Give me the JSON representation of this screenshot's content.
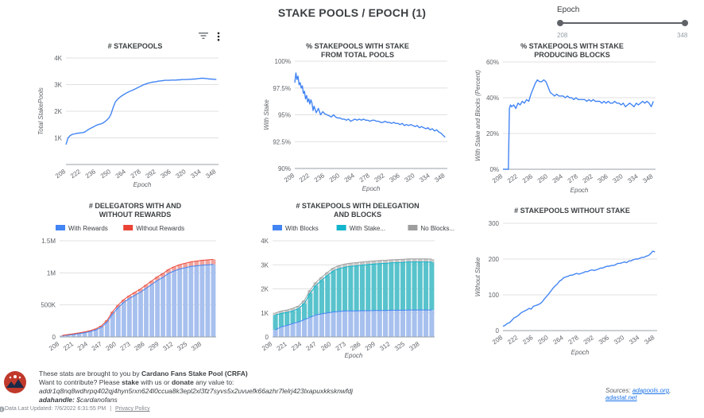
{
  "page": {
    "title": "STAKE POOLS / EPOCH (1)",
    "slider": {
      "label": "Epoch",
      "min": "208",
      "max": "348"
    }
  },
  "colors": {
    "blue": "#4285f4",
    "red": "#ea4335",
    "teal": "#58c3cc",
    "gray": "#c7c7c7",
    "bar_blue": "#a7c0ee",
    "bar_red": "#f1a39c"
  },
  "icons": {
    "filter": "filter-icon",
    "more": "more-vert-icon",
    "info": "info-icon",
    "logo": "cardano-logo"
  },
  "chart_data": [
    {
      "id": "stakepools",
      "type": "line",
      "title": "# STAKEPOOLS",
      "xlabel": "Epoch",
      "ylabel": "Total StakePools",
      "x_ticks": [
        "208",
        "222",
        "236",
        "250",
        "264",
        "278",
        "292",
        "306",
        "320",
        "334",
        "348"
      ],
      "y_ticks": [
        "1K",
        "2K",
        "3K",
        "4K"
      ],
      "xlim": [
        208,
        350
      ],
      "ylim": [
        0,
        4000
      ],
      "series": [
        {
          "x": [
            208,
            210,
            212,
            214,
            216,
            218,
            220,
            222,
            224,
            226,
            228,
            230,
            232,
            234,
            236,
            238,
            240,
            242,
            244,
            246,
            248,
            250,
            252,
            254,
            256,
            258,
            260,
            262,
            264,
            266,
            268,
            270,
            272,
            274,
            276,
            278,
            280,
            282,
            284,
            286,
            288,
            290,
            292,
            294,
            296,
            298,
            300,
            302,
            304,
            306,
            308,
            310,
            312,
            314,
            316,
            318,
            320,
            322,
            324,
            326,
            328,
            330,
            332,
            334,
            336,
            338,
            340,
            342,
            344,
            346,
            348
          ],
          "y": [
            750,
            1000,
            1090,
            1130,
            1150,
            1170,
            1180,
            1190,
            1200,
            1230,
            1290,
            1340,
            1380,
            1420,
            1470,
            1500,
            1520,
            1550,
            1600,
            1670,
            1750,
            1900,
            2150,
            2350,
            2450,
            2520,
            2580,
            2630,
            2680,
            2720,
            2760,
            2790,
            2830,
            2870,
            2910,
            2950,
            2990,
            3020,
            3050,
            3070,
            3090,
            3100,
            3110,
            3130,
            3140,
            3150,
            3160,
            3160,
            3160,
            3170,
            3170,
            3170,
            3180,
            3180,
            3190,
            3190,
            3190,
            3200,
            3200,
            3210,
            3210,
            3220,
            3230,
            3240,
            3240,
            3230,
            3220,
            3210,
            3210,
            3200,
            3200
          ]
        }
      ]
    },
    {
      "id": "pct_stake",
      "type": "line",
      "title": "% STAKEPOOLS WITH STAKE FROM TOTAL POOLS",
      "title_lines": [
        "% STAKEPOOLS WITH STAKE",
        "FROM TOTAL POOLS"
      ],
      "xlabel": "Epoch",
      "ylabel": "With Stake",
      "x_ticks": [
        "208",
        "222",
        "236",
        "250",
        "264",
        "278",
        "292",
        "306",
        "320",
        "334",
        "348"
      ],
      "y_ticks": [
        "90%",
        "92.5%",
        "95%",
        "97.5%",
        "100%"
      ],
      "xlim": [
        208,
        350
      ],
      "ylim": [
        90,
        100
      ],
      "series": [
        {
          "x": [
            208,
            209,
            210,
            211,
            212,
            213,
            214,
            215,
            216,
            217,
            218,
            219,
            220,
            221,
            222,
            223,
            224,
            225,
            226,
            228,
            230,
            232,
            234,
            236,
            238,
            240,
            242,
            244,
            246,
            248,
            250,
            252,
            254,
            256,
            258,
            260,
            262,
            264,
            266,
            268,
            270,
            272,
            274,
            276,
            278,
            280,
            282,
            284,
            286,
            288,
            290,
            292,
            294,
            296,
            298,
            300,
            302,
            304,
            306,
            308,
            310,
            312,
            314,
            316,
            318,
            320,
            322,
            324,
            326,
            328,
            330,
            332,
            334,
            336,
            338,
            340,
            342,
            344,
            346,
            348
          ],
          "y": [
            98.0,
            98.9,
            98.3,
            98.6,
            97.8,
            98.0,
            97.5,
            97.7,
            97.0,
            97.2,
            96.5,
            96.8,
            96.2,
            96.5,
            96.0,
            96.4,
            96.1,
            95.4,
            95.8,
            95.2,
            95.6,
            95.0,
            95.3,
            95.1,
            95.0,
            94.9,
            94.8,
            95.0,
            94.8,
            94.7,
            94.7,
            94.6,
            94.6,
            94.5,
            94.6,
            94.4,
            94.5,
            94.6,
            94.5,
            94.6,
            94.5,
            94.6,
            94.5,
            94.5,
            94.4,
            94.5,
            94.5,
            94.4,
            94.4,
            94.3,
            94.3,
            94.4,
            94.3,
            94.3,
            94.2,
            94.3,
            94.2,
            94.2,
            94.1,
            94.2,
            94.0,
            94.1,
            94.0,
            94.1,
            94.0,
            93.9,
            94.0,
            93.8,
            93.9,
            93.8,
            93.7,
            93.8,
            93.6,
            93.7,
            93.5,
            93.6,
            93.4,
            93.3,
            93.1,
            92.9
          ]
        }
      ]
    },
    {
      "id": "pct_producing",
      "type": "line",
      "title": "% STAKEPOOLS WITH STAKE PRODUCING BLOCKS",
      "title_lines": [
        "% STAKEPOOLS WITH STAKE",
        "PRODUCING BLOCKS"
      ],
      "xlabel": "Epoch",
      "ylabel": "With Stake and Blocks (Percent)",
      "x_ticks": [
        "208",
        "222",
        "236",
        "250",
        "264",
        "278",
        "292",
        "306",
        "320",
        "334",
        "348"
      ],
      "y_ticks": [
        "0%",
        "20%",
        "40%",
        "60%"
      ],
      "xlim": [
        208,
        350
      ],
      "ylim": [
        0,
        60
      ],
      "series": [
        {
          "x": [
            208,
            209,
            210,
            211,
            212,
            213,
            214,
            215,
            216,
            218,
            220,
            222,
            224,
            226,
            228,
            230,
            232,
            234,
            236,
            238,
            240,
            242,
            244,
            246,
            248,
            250,
            252,
            254,
            256,
            258,
            260,
            262,
            264,
            266,
            268,
            270,
            272,
            274,
            276,
            278,
            280,
            282,
            284,
            286,
            288,
            290,
            292,
            294,
            296,
            298,
            300,
            302,
            304,
            306,
            308,
            310,
            312,
            314,
            316,
            318,
            320,
            322,
            324,
            326,
            328,
            330,
            332,
            334,
            336,
            338,
            340,
            342,
            344,
            346,
            348
          ],
          "y": [
            0,
            0,
            0,
            0,
            0,
            0,
            34,
            36,
            35,
            36,
            34,
            37,
            36,
            38,
            37,
            39,
            38,
            42,
            45,
            48,
            50,
            49,
            49,
            50,
            49,
            46,
            43,
            42,
            41,
            42,
            41,
            41,
            41,
            40,
            41,
            40,
            40,
            39,
            40,
            39,
            39,
            39,
            39,
            38,
            39,
            38,
            39,
            38,
            38,
            38,
            37,
            38,
            37,
            38,
            37,
            37,
            38,
            37,
            37,
            36,
            37,
            35,
            36,
            37,
            36,
            35,
            37,
            36,
            37,
            38,
            37,
            38,
            37,
            35,
            38
          ]
        }
      ]
    },
    {
      "id": "delegators",
      "type": "bar",
      "stacked": true,
      "title": "# DELEGATORS WITH AND WITHOUT REWARDS",
      "title_lines": [
        "# DELEGATORS WITH AND",
        "WITHOUT REWARDS"
      ],
      "legend": [
        "With Rewards",
        "Without Rewards"
      ],
      "legend_position": "top",
      "xlabel": "",
      "ylabel": "",
      "x_ticks": [
        "208",
        "221",
        "234",
        "247",
        "260",
        "273",
        "286",
        "299",
        "312",
        "325",
        "338"
      ],
      "y_ticks": [
        "0",
        "500K",
        "1M",
        "1.5M"
      ],
      "xlim": [
        208,
        351
      ],
      "ylim": [
        0,
        1500000
      ],
      "series": [
        {
          "name": "With Rewards",
          "values": [
            20000,
            30000,
            40000,
            52000,
            66000,
            84000,
            110000,
            152000,
            230000,
            360000,
            460000,
            540000,
            600000,
            650000,
            700000,
            760000,
            820000,
            880000,
            930000,
            990000,
            1030000,
            1060000,
            1080000,
            1100000,
            1110000,
            1120000,
            1125000,
            1130000
          ]
        },
        {
          "name": "Without Rewards",
          "values": [
            5000,
            7000,
            9000,
            11000,
            13000,
            15000,
            18000,
            23000,
            30000,
            36000,
            40000,
            43000,
            46000,
            48000,
            50000,
            53000,
            55000,
            58000,
            60000,
            62000,
            65000,
            68000,
            70000,
            72000,
            74000,
            76000,
            78000,
            80000
          ]
        }
      ]
    },
    {
      "id": "delegation_blocks",
      "type": "bar",
      "stacked": true,
      "title": "# STAKEPOOLS WITH DELEGATION AND BLOCKS",
      "title_lines": [
        "# STAKEPOOLS WITH DELEGATION",
        "AND BLOCKS"
      ],
      "legend": [
        "With Blocks",
        "With Stake...",
        "No Blocks..."
      ],
      "legend_position": "top",
      "xlabel": "Epoch",
      "ylabel": "",
      "x_ticks": [
        "208",
        "221",
        "234",
        "247",
        "260",
        "273",
        "286",
        "299",
        "312",
        "325",
        "338"
      ],
      "y_ticks": [
        "0",
        "1K",
        "2K",
        "3K",
        "4K"
      ],
      "xlim": [
        208,
        351
      ],
      "ylim": [
        0,
        4000
      ],
      "series": [
        {
          "name": "With Blocks",
          "values": [
            300,
            420,
            480,
            560,
            620,
            720,
            820,
            920,
            960,
            1000,
            1040,
            1060,
            1080,
            1080,
            1080,
            1090,
            1090,
            1100,
            1100,
            1100,
            1110,
            1110,
            1110,
            1120,
            1120,
            1120,
            1120,
            1120
          ]
        },
        {
          "name": "With Stake...",
          "values": [
            610,
            560,
            540,
            520,
            560,
            680,
            1000,
            1220,
            1400,
            1560,
            1700,
            1780,
            1820,
            1860,
            1880,
            1900,
            1920,
            1930,
            1950,
            1960,
            1970,
            1980,
            1990,
            2000,
            2000,
            2000,
            2000,
            1990
          ]
        },
        {
          "name": "No Blocks...",
          "values": [
            90,
            100,
            100,
            110,
            110,
            120,
            130,
            130,
            130,
            130,
            130,
            130,
            130,
            130,
            130,
            130,
            130,
            130,
            130,
            130,
            130,
            130,
            130,
            130,
            130,
            130,
            130,
            130
          ]
        }
      ]
    },
    {
      "id": "without_stake",
      "type": "line",
      "title": "# STAKEPOOLS WITHOUT STAKE",
      "xlabel": "Epoch",
      "ylabel": "Without Stake",
      "x_ticks": [
        "208",
        "222",
        "236",
        "250",
        "264",
        "278",
        "292",
        "306",
        "320",
        "334",
        "348"
      ],
      "y_ticks": [
        "0",
        "100",
        "200",
        "300"
      ],
      "xlim": [
        208,
        350
      ],
      "ylim": [
        0,
        300
      ],
      "series": [
        {
          "x": [
            208,
            210,
            212,
            214,
            216,
            218,
            220,
            222,
            224,
            226,
            228,
            230,
            232,
            234,
            236,
            238,
            240,
            242,
            244,
            246,
            248,
            250,
            252,
            254,
            256,
            258,
            260,
            262,
            264,
            266,
            268,
            270,
            272,
            274,
            276,
            278,
            280,
            282,
            284,
            286,
            288,
            290,
            292,
            294,
            296,
            298,
            300,
            302,
            304,
            306,
            308,
            310,
            312,
            314,
            316,
            318,
            320,
            322,
            324,
            326,
            328,
            330,
            332,
            334,
            336,
            338,
            340,
            342,
            344,
            346,
            348
          ],
          "y": [
            12,
            15,
            20,
            22,
            28,
            35,
            38,
            42,
            48,
            52,
            55,
            58,
            62,
            60,
            68,
            70,
            72,
            75,
            80,
            88,
            95,
            102,
            110,
            118,
            125,
            130,
            138,
            142,
            148,
            150,
            152,
            155,
            155,
            158,
            160,
            158,
            160,
            162,
            165,
            165,
            168,
            170,
            168,
            170,
            172,
            175,
            175,
            178,
            180,
            180,
            182,
            182,
            185,
            188,
            188,
            190,
            192,
            190,
            195,
            195,
            198,
            200,
            200,
            202,
            205,
            205,
            208,
            210,
            215,
            222,
            220
          ]
        }
      ]
    }
  ],
  "footer": {
    "line1_prefix": "These stats are brought to you by ",
    "line1_bold": "Cardano Fans Stake Pool (CRFA)",
    "line2_a": "Want to contribute? Please ",
    "line2_b": "stake",
    "line2_c": " with us or ",
    "line2_d": "donate",
    "line2_e": " any value to:",
    "address": "addr1q8nq8wdhrpq402qj4hyn5rxn624l0ccua8k3epl2xl3fz7syvs5x2uvuefk66azhr7lelrj423lxapuxkksknwfdj",
    "adahandle_label": "adahandle:",
    "adahandle_value": "$cardanofans",
    "updated": "Data Last Updated: 7/6/2022 6:31:55 PM",
    "separator": "|",
    "privacy": "Privacy Policy",
    "sources_label": "Sources: ",
    "source1": "adapools.org",
    "source_sep": ", ",
    "source2": "adastat.net"
  }
}
